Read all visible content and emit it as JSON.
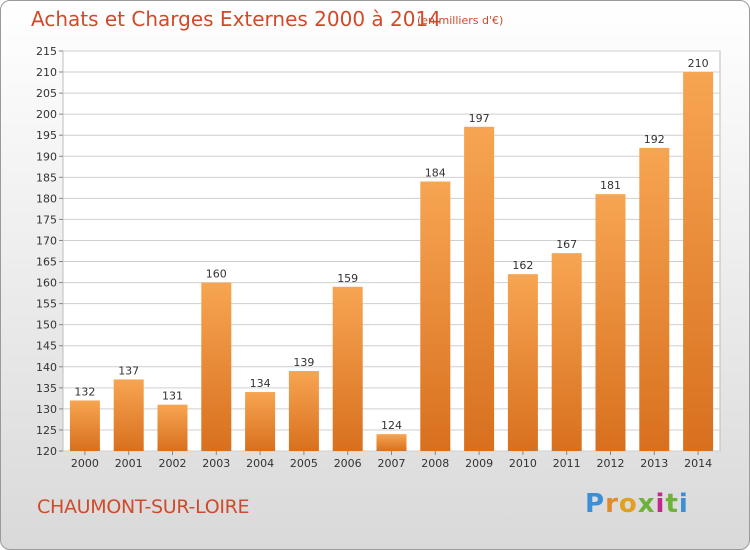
{
  "header": {
    "title": "Achats et Charges Externes 2000 à 2014",
    "unit": "(en milliers d'€)"
  },
  "footer": {
    "commune": "CHAUMONT-SUR-LOIRE",
    "logo_letters": [
      "P",
      "r",
      "o",
      "x",
      "i",
      "t",
      "i"
    ],
    "logo_colors": [
      "#3a8fd6",
      "#e08a2a",
      "#e0a020",
      "#6fb23a",
      "#c02a8a",
      "#6fb23a",
      "#3a8fd6"
    ]
  },
  "colors": {
    "bar_light": "#f7a552",
    "bar_dark": "#d8701e",
    "grid": "#cfcfcf",
    "text": "#333333",
    "accent": "#d14a2a"
  },
  "chart_data": {
    "type": "bar",
    "categories": [
      "2000",
      "2001",
      "2002",
      "2003",
      "2004",
      "2005",
      "2006",
      "2007",
      "2008",
      "2009",
      "2010",
      "2011",
      "2012",
      "2013",
      "2014"
    ],
    "values": [
      132,
      137,
      131,
      160,
      134,
      139,
      159,
      124,
      184,
      197,
      162,
      167,
      181,
      192,
      210
    ],
    "data_labels": [
      "132",
      "137",
      "131",
      "160",
      "134",
      "139",
      "159",
      "124",
      "184",
      "197",
      "162",
      "167",
      "181",
      "192",
      "210"
    ],
    "ylim": [
      120,
      215
    ],
    "yticks": [
      120,
      125,
      130,
      135,
      140,
      145,
      150,
      155,
      160,
      165,
      170,
      175,
      180,
      185,
      190,
      195,
      200,
      205,
      210,
      215
    ],
    "ytick_labels": [
      "120",
      "125",
      "130",
      "135",
      "140",
      "145",
      "150",
      "155",
      "160",
      "165",
      "170",
      "175",
      "180",
      "185",
      "190",
      "195",
      "200",
      "205",
      "210",
      "215"
    ],
    "grid": true,
    "xlabel": "",
    "ylabel": ""
  }
}
